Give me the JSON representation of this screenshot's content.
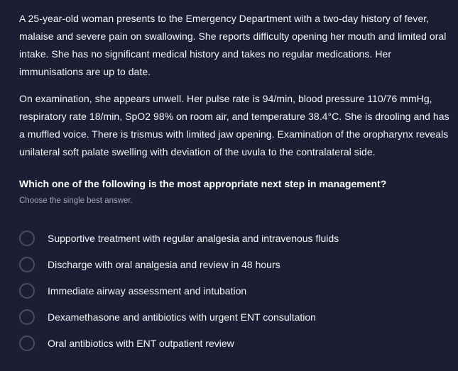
{
  "stem": {
    "paragraphs": [
      "A 25-year-old woman presents to the Emergency Department with a two-day history of fever, malaise and severe pain on swallowing. She reports difficulty opening her mouth and limited oral intake. She has no significant medical history and takes no regular medications. Her immunisations are up to date.",
      "On examination, she appears unwell. Her pulse rate is 94/min, blood pressure 110/76 mmHg, respiratory rate 18/min, SpO2 98% on room air, and temperature 38.4°C. She is drooling and has a muffled voice. There is trismus with limited jaw opening. Examination of the oropharynx reveals unilateral soft palate swelling with deviation of the uvula to the contralateral side."
    ]
  },
  "question": "Which one of the following is the most appropriate next step in management?",
  "hint": "Choose the single best answer.",
  "options": [
    "Supportive treatment with regular analgesia and intravenous fluids",
    "Discharge with oral analgesia and review in 48 hours",
    "Immediate airway assessment and intubation",
    "Dexamethasone and antibiotics with urgent ENT consultation",
    "Oral antibiotics with ENT outpatient review"
  ],
  "colors": {
    "background": "#1c1f33",
    "text": "#f4f5f8",
    "muted": "#a3a6b6",
    "radio_border": "#4a4d62"
  }
}
